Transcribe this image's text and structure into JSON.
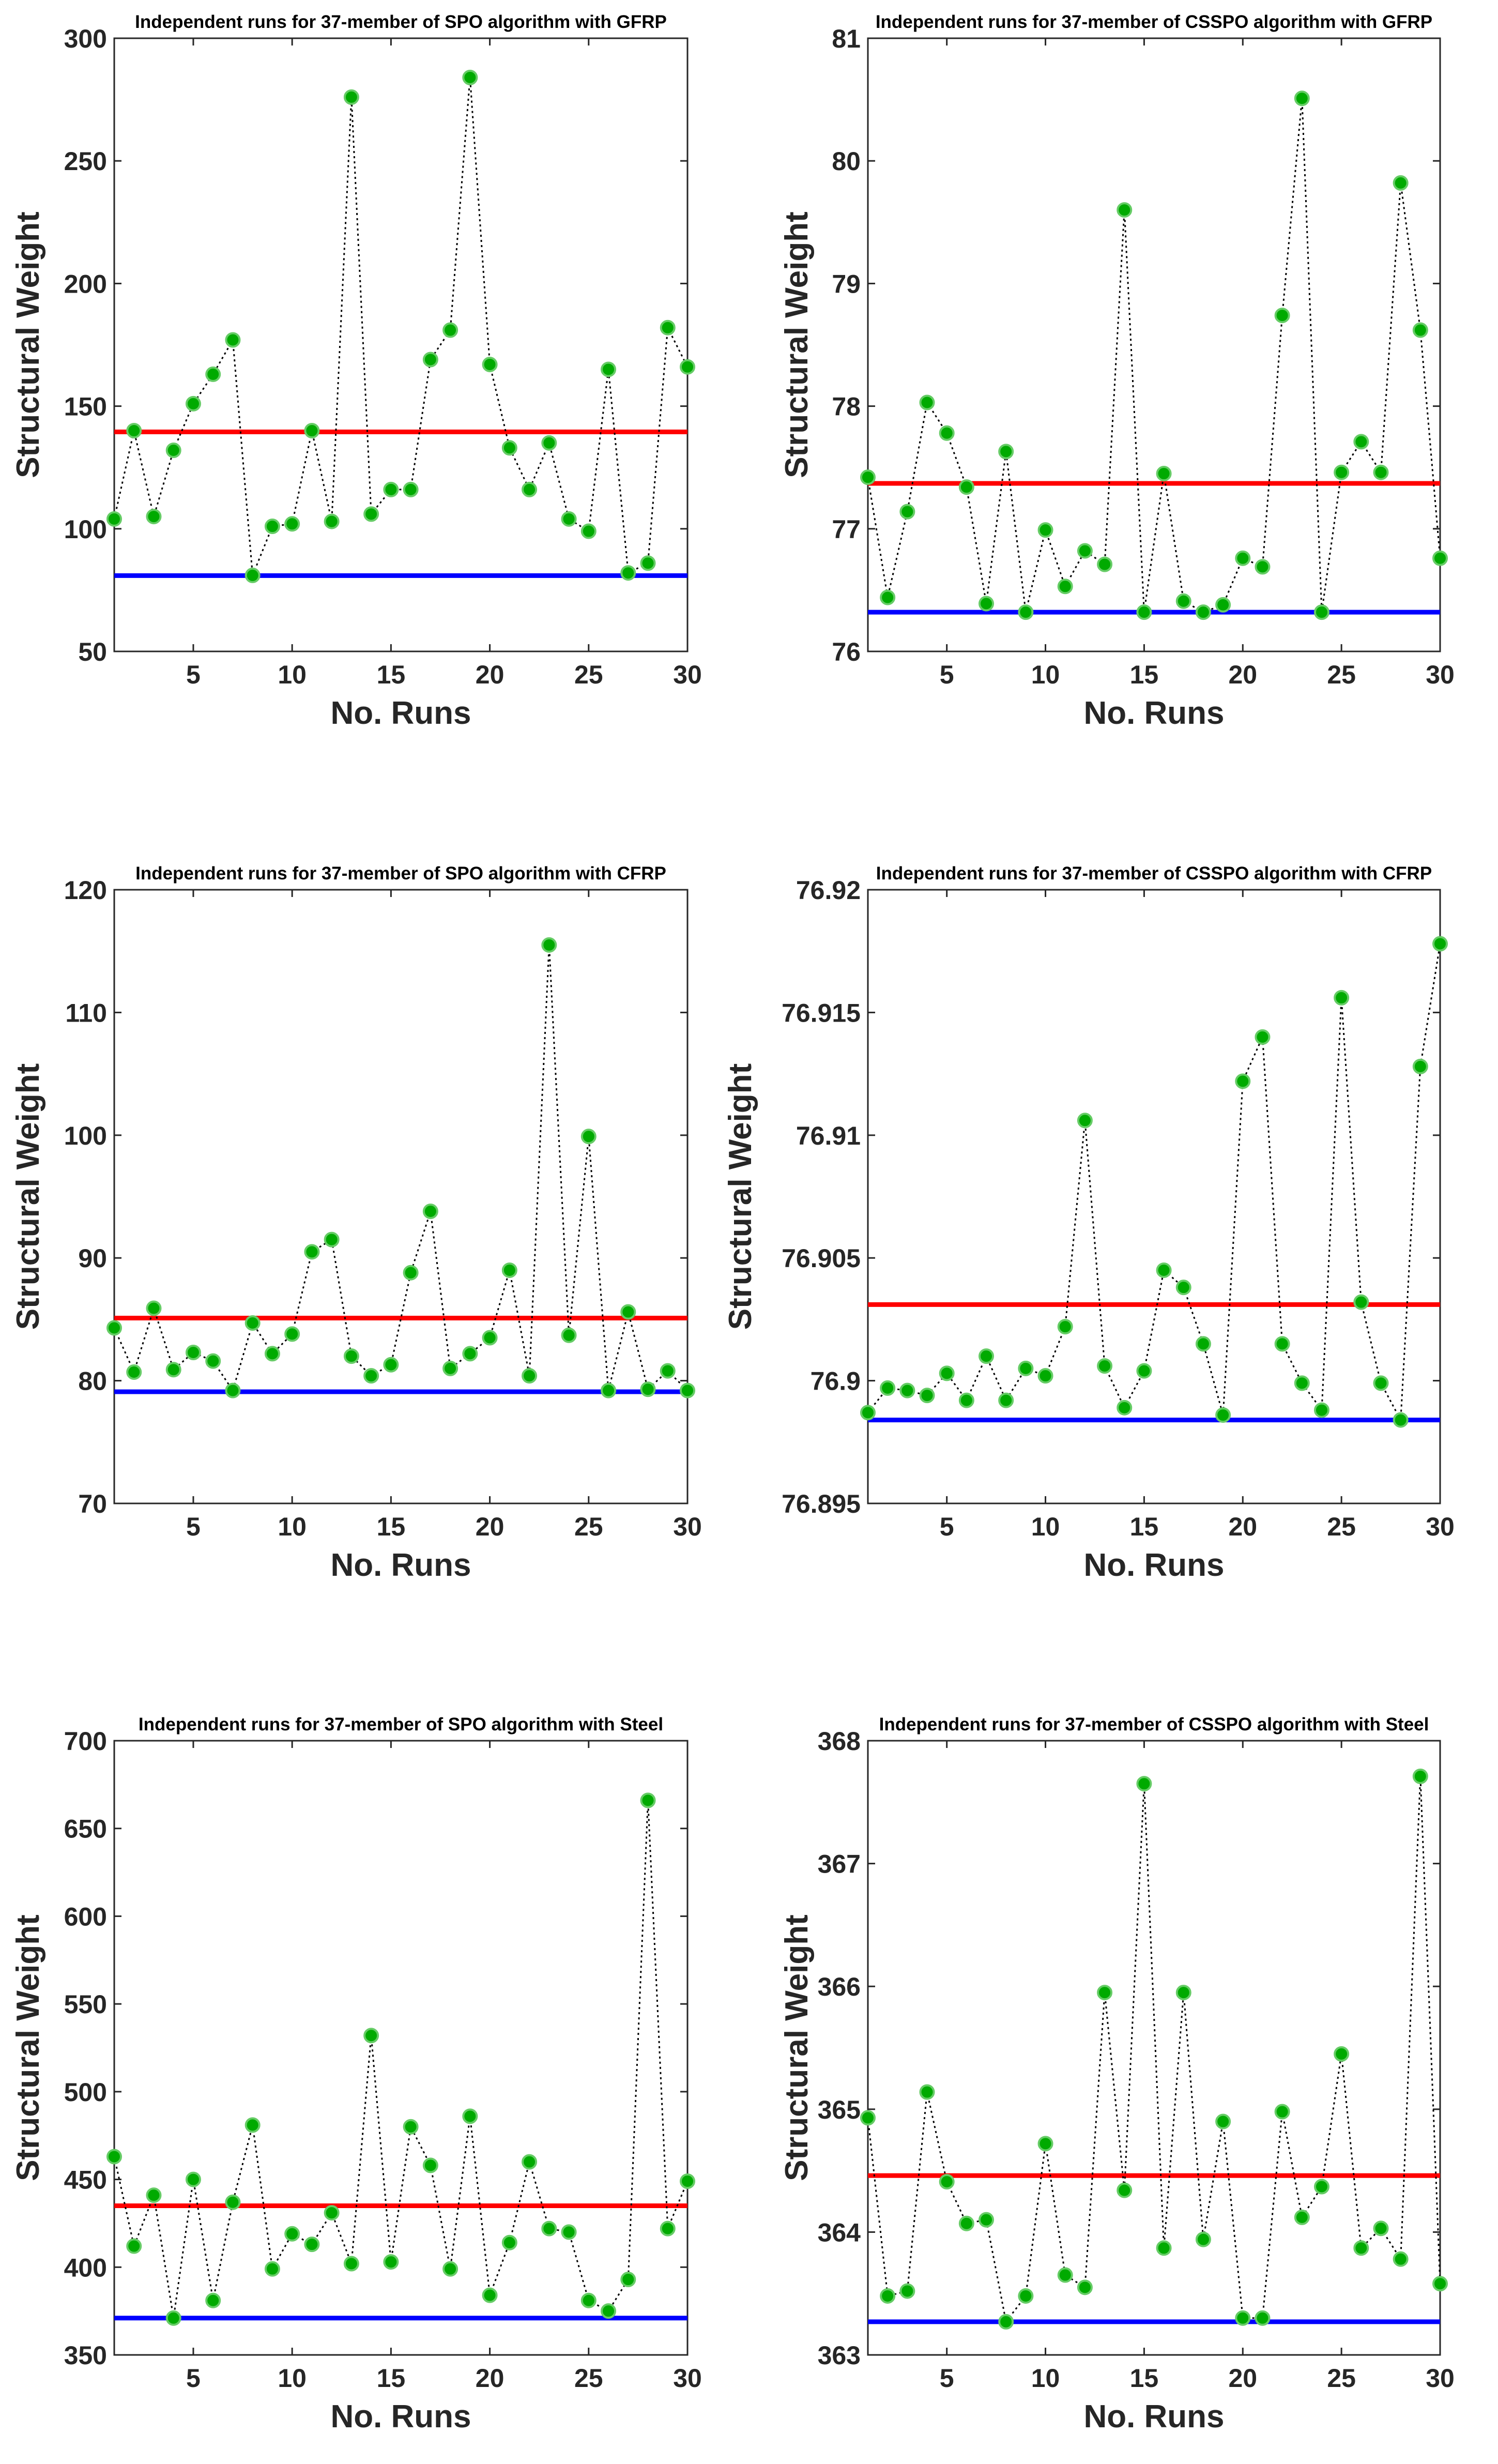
{
  "chart_data": [
    {
      "type": "line",
      "title": "Independent runs for 37-member of SPO algorithm with GFRP",
      "xlabel": "No. Runs",
      "ylabel": "Structural Weight",
      "xlim": [
        1,
        30
      ],
      "ylim": [
        50,
        300
      ],
      "xticks": [
        "5",
        "10",
        "15",
        "20",
        "25",
        "30"
      ],
      "yticks": [
        "50",
        "100",
        "150",
        "200",
        "250",
        "300"
      ],
      "x": [
        1,
        2,
        3,
        4,
        5,
        6,
        7,
        8,
        9,
        10,
        11,
        12,
        13,
        14,
        15,
        16,
        17,
        18,
        19,
        20,
        21,
        22,
        23,
        24,
        25,
        26,
        27,
        28,
        29,
        30
      ],
      "series": [
        {
          "values": [
            104,
            140,
            105,
            132,
            151,
            163,
            177,
            81,
            101,
            102,
            140,
            103,
            276,
            106,
            116,
            116,
            169,
            181,
            284,
            167,
            133,
            116,
            135,
            104,
            99,
            165,
            82,
            86,
            182,
            166
          ]
        }
      ],
      "reference_lines": [
        {
          "color": "#ff0000",
          "value": 139.5
        },
        {
          "color": "#0000ff",
          "value": 80.9
        }
      ],
      "grid": false,
      "legend": "none",
      "colors": {
        "marker_fill": "#00aa00",
        "marker_edge": "#66cc66",
        "line": "#000000"
      }
    },
    {
      "type": "line",
      "title": "Independent runs for 37-member of CSSPO algorithm with GFRP",
      "xlabel": "No. Runs",
      "ylabel": "Structural Weight",
      "xlim": [
        1,
        30
      ],
      "ylim": [
        76,
        81
      ],
      "xticks": [
        "5",
        "10",
        "15",
        "20",
        "25",
        "30"
      ],
      "yticks": [
        "76",
        "77",
        "78",
        "79",
        "80",
        "81"
      ],
      "x": [
        1,
        2,
        3,
        4,
        5,
        6,
        7,
        8,
        9,
        10,
        11,
        12,
        13,
        14,
        15,
        16,
        17,
        18,
        19,
        20,
        21,
        22,
        23,
        24,
        25,
        26,
        27,
        28,
        29,
        30
      ],
      "series": [
        {
          "values": [
            77.42,
            76.44,
            77.14,
            78.03,
            77.78,
            77.34,
            76.39,
            77.63,
            76.32,
            76.99,
            76.53,
            76.82,
            76.71,
            79.6,
            76.32,
            77.45,
            76.41,
            76.32,
            76.38,
            76.76,
            76.69,
            78.74,
            80.51,
            76.32,
            77.46,
            77.71,
            77.46,
            79.82,
            78.62,
            76.76
          ]
        }
      ],
      "reference_lines": [
        {
          "color": "#ff0000",
          "value": 77.37
        },
        {
          "color": "#0000ff",
          "value": 76.32
        }
      ],
      "grid": false,
      "legend": "none",
      "colors": {
        "marker_fill": "#00aa00",
        "marker_edge": "#66cc66",
        "line": "#000000"
      }
    },
    {
      "type": "line",
      "title": "Independent runs for 37-member of SPO algorithm with CFRP",
      "xlabel": "No. Runs",
      "ylabel": "Structural Weight",
      "xlim": [
        1,
        30
      ],
      "ylim": [
        70,
        120
      ],
      "xticks": [
        "5",
        "10",
        "15",
        "20",
        "25",
        "30"
      ],
      "yticks": [
        "70",
        "80",
        "90",
        "100",
        "110",
        "120"
      ],
      "x": [
        1,
        2,
        3,
        4,
        5,
        6,
        7,
        8,
        9,
        10,
        11,
        12,
        13,
        14,
        15,
        16,
        17,
        18,
        19,
        20,
        21,
        22,
        23,
        24,
        25,
        26,
        27,
        28,
        29,
        30
      ],
      "series": [
        {
          "values": [
            84.3,
            80.7,
            85.9,
            80.9,
            82.3,
            81.6,
            79.2,
            84.7,
            82.2,
            83.8,
            90.5,
            91.5,
            82.0,
            80.4,
            81.3,
            88.8,
            93.8,
            81.0,
            82.2,
            83.5,
            89.0,
            80.4,
            115.5,
            83.7,
            99.9,
            79.2,
            85.6,
            79.3,
            80.8,
            79.2
          ]
        }
      ],
      "reference_lines": [
        {
          "color": "#ff0000",
          "value": 85.1
        },
        {
          "color": "#0000ff",
          "value": 79.1
        }
      ],
      "grid": false,
      "legend": "none",
      "colors": {
        "marker_fill": "#00aa00",
        "marker_edge": "#66cc66",
        "line": "#000000"
      }
    },
    {
      "type": "line",
      "title": "Independent runs for 37-member of CSSPO algorithm with CFRP",
      "xlabel": "No. Runs",
      "ylabel": "Structural Weight",
      "xlim": [
        1,
        30
      ],
      "ylim": [
        76.895,
        76.92
      ],
      "xticks": [
        "5",
        "10",
        "15",
        "20",
        "25",
        "30"
      ],
      "yticks": [
        "76.895",
        "76.9",
        "76.905",
        "76.91",
        "76.915",
        "76.92"
      ],
      "x": [
        1,
        2,
        3,
        4,
        5,
        6,
        7,
        8,
        9,
        10,
        11,
        12,
        13,
        14,
        15,
        16,
        17,
        18,
        19,
        20,
        21,
        22,
        23,
        24,
        25,
        26,
        27,
        28,
        29,
        30
      ],
      "series": [
        {
          "values": [
            76.8987,
            76.8997,
            76.8996,
            76.8994,
            76.9003,
            76.8992,
            76.901,
            76.8992,
            76.9005,
            76.9002,
            76.9022,
            76.9106,
            76.9006,
            76.8989,
            76.9004,
            76.9045,
            76.9038,
            76.9015,
            76.8986,
            76.9122,
            76.914,
            76.9015,
            76.8999,
            76.8988,
            76.9156,
            76.9032,
            76.8999,
            76.8984,
            76.9128,
            76.9178
          ]
        }
      ],
      "reference_lines": [
        {
          "color": "#ff0000",
          "value": 76.9031
        },
        {
          "color": "#0000ff",
          "value": 76.8984
        }
      ],
      "grid": false,
      "legend": "none",
      "colors": {
        "marker_fill": "#00aa00",
        "marker_edge": "#66cc66",
        "line": "#000000"
      }
    },
    {
      "type": "line",
      "title": "Independent runs for 37-member of SPO algorithm with Steel",
      "xlabel": "No. Runs",
      "ylabel": "Structural Weight",
      "xlim": [
        1,
        30
      ],
      "ylim": [
        350,
        700
      ],
      "xticks": [
        "5",
        "10",
        "15",
        "20",
        "25",
        "30"
      ],
      "yticks": [
        "350",
        "400",
        "450",
        "500",
        "550",
        "600",
        "650",
        "700"
      ],
      "x": [
        1,
        2,
        3,
        4,
        5,
        6,
        7,
        8,
        9,
        10,
        11,
        12,
        13,
        14,
        15,
        16,
        17,
        18,
        19,
        20,
        21,
        22,
        23,
        24,
        25,
        26,
        27,
        28,
        29,
        30
      ],
      "series": [
        {
          "values": [
            463,
            412,
            441,
            371,
            450,
            381,
            437,
            481,
            399,
            419,
            413,
            431,
            402,
            532,
            403,
            480,
            458,
            399,
            486,
            384,
            414,
            460,
            422,
            420,
            381,
            375,
            393,
            666,
            422,
            449
          ]
        }
      ],
      "reference_lines": [
        {
          "color": "#ff0000",
          "value": 435
        },
        {
          "color": "#0000ff",
          "value": 371
        }
      ],
      "grid": false,
      "legend": "none",
      "colors": {
        "marker_fill": "#00aa00",
        "marker_edge": "#66cc66",
        "line": "#000000"
      }
    },
    {
      "type": "line",
      "title": "Independent runs for 37-member of CSSPO algorithm with Steel",
      "xlabel": "No. Runs",
      "ylabel": "Structural Weight",
      "xlim": [
        1,
        30
      ],
      "ylim": [
        363,
        368
      ],
      "xticks": [
        "5",
        "10",
        "15",
        "20",
        "25",
        "30"
      ],
      "yticks": [
        "363",
        "364",
        "365",
        "366",
        "367",
        "368"
      ],
      "x": [
        1,
        2,
        3,
        4,
        5,
        6,
        7,
        8,
        9,
        10,
        11,
        12,
        13,
        14,
        15,
        16,
        17,
        18,
        19,
        20,
        21,
        22,
        23,
        24,
        25,
        26,
        27,
        28,
        29,
        30
      ],
      "series": [
        {
          "values": [
            364.93,
            363.48,
            363.52,
            365.14,
            364.41,
            364.07,
            364.1,
            363.27,
            363.48,
            364.72,
            363.65,
            363.55,
            365.95,
            364.34,
            367.65,
            363.87,
            365.95,
            363.94,
            364.9,
            363.3,
            363.3,
            364.98,
            364.12,
            364.37,
            365.45,
            363.87,
            364.03,
            363.78,
            367.71,
            363.58
          ]
        }
      ],
      "reference_lines": [
        {
          "color": "#ff0000",
          "value": 364.46
        },
        {
          "color": "#0000ff",
          "value": 363.27
        }
      ],
      "grid": false,
      "legend": "none",
      "colors": {
        "marker_fill": "#00aa00",
        "marker_edge": "#66cc66",
        "line": "#000000"
      }
    }
  ]
}
